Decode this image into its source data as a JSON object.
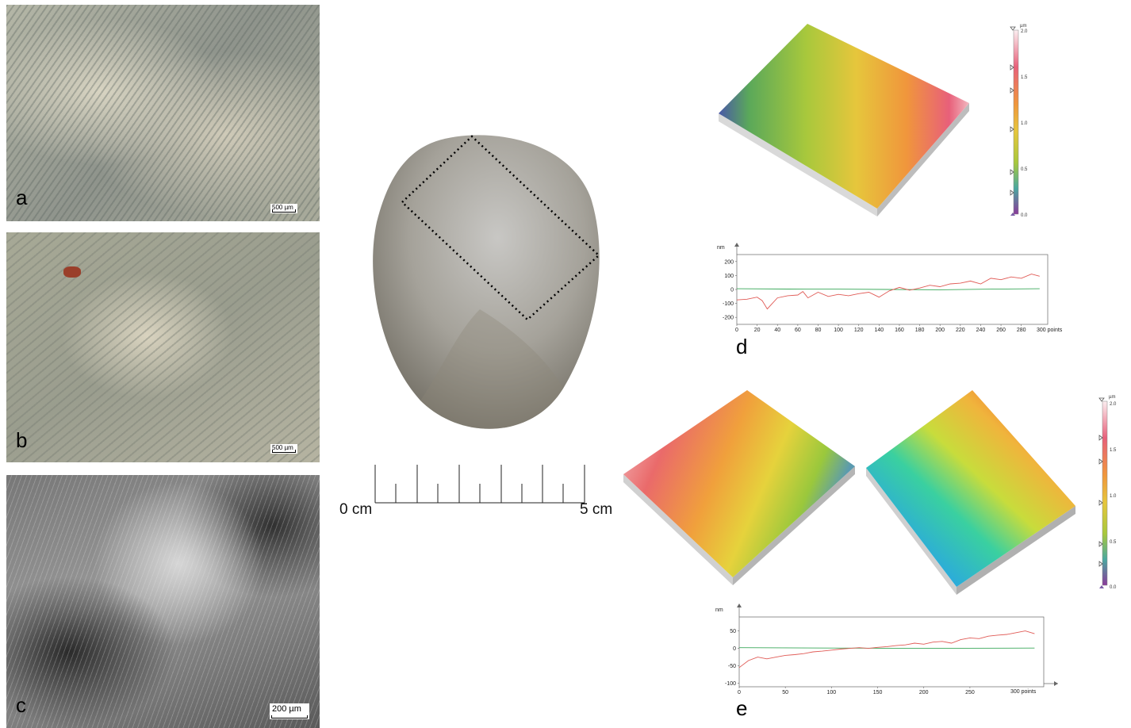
{
  "panels": {
    "a": {
      "letter": "a",
      "scale_label": "500 µm"
    },
    "b": {
      "letter": "b",
      "scale_label": "500 µm"
    },
    "c": {
      "letter": "c",
      "scale_label": "200 µm"
    },
    "d": {
      "letter": "d"
    },
    "e": {
      "letter": "e"
    }
  },
  "ruler": {
    "start_label": "0 cm",
    "end_label": "5 cm"
  },
  "colors": {
    "profile_red": "#e05a55",
    "profile_green": "#3aa85a",
    "accent_marker": "#7b5ea7"
  },
  "colorbar": {
    "unit": "µm",
    "ticks": [
      "2.0",
      "1.5",
      "1.0",
      "0.5",
      "0.0"
    ]
  },
  "profile_d": {
    "unit": "nm",
    "y_ticks": [
      "200",
      "100",
      "0",
      "-100",
      "-200"
    ],
    "x_ticks": [
      "0",
      "20",
      "40",
      "60",
      "80",
      "100",
      "120",
      "140",
      "160",
      "180",
      "200",
      "220",
      "240",
      "260",
      "280"
    ],
    "x_end_label": "300 points",
    "red": [
      [
        0,
        -75
      ],
      [
        10,
        -70
      ],
      [
        20,
        -55
      ],
      [
        25,
        -80
      ],
      [
        30,
        -140
      ],
      [
        35,
        -100
      ],
      [
        40,
        -60
      ],
      [
        50,
        -45
      ],
      [
        60,
        -40
      ],
      [
        65,
        -15
      ],
      [
        70,
        -60
      ],
      [
        80,
        -20
      ],
      [
        90,
        -50
      ],
      [
        100,
        -35
      ],
      [
        110,
        -45
      ],
      [
        120,
        -30
      ],
      [
        130,
        -20
      ],
      [
        140,
        -55
      ],
      [
        150,
        -10
      ],
      [
        160,
        15
      ],
      [
        170,
        -5
      ],
      [
        180,
        10
      ],
      [
        190,
        30
      ],
      [
        200,
        20
      ],
      [
        210,
        40
      ],
      [
        220,
        45
      ],
      [
        230,
        60
      ],
      [
        240,
        40
      ],
      [
        250,
        80
      ],
      [
        260,
        70
      ],
      [
        270,
        90
      ],
      [
        280,
        80
      ],
      [
        290,
        110
      ],
      [
        298,
        95
      ]
    ],
    "green": [
      [
        0,
        5
      ],
      [
        50,
        3
      ],
      [
        100,
        2
      ],
      [
        150,
        0
      ],
      [
        200,
        -2
      ],
      [
        250,
        2
      ],
      [
        298,
        5
      ]
    ]
  },
  "profile_e": {
    "unit": "nm",
    "y_ticks": [
      "50",
      "0",
      "-50",
      "-100"
    ],
    "x_ticks": [
      "0",
      "50",
      "100",
      "150",
      "200",
      "250"
    ],
    "x_end_label": "300 points",
    "red": [
      [
        0,
        -55
      ],
      [
        10,
        -35
      ],
      [
        20,
        -25
      ],
      [
        30,
        -30
      ],
      [
        40,
        -25
      ],
      [
        50,
        -20
      ],
      [
        60,
        -18
      ],
      [
        70,
        -15
      ],
      [
        80,
        -10
      ],
      [
        90,
        -8
      ],
      [
        100,
        -5
      ],
      [
        110,
        -2
      ],
      [
        120,
        0
      ],
      [
        130,
        2
      ],
      [
        140,
        0
      ],
      [
        150,
        3
      ],
      [
        160,
        5
      ],
      [
        170,
        8
      ],
      [
        180,
        10
      ],
      [
        190,
        15
      ],
      [
        200,
        12
      ],
      [
        210,
        18
      ],
      [
        220,
        20
      ],
      [
        230,
        15
      ],
      [
        240,
        25
      ],
      [
        250,
        30
      ],
      [
        260,
        28
      ],
      [
        270,
        35
      ],
      [
        280,
        38
      ],
      [
        290,
        40
      ],
      [
        300,
        45
      ],
      [
        310,
        50
      ],
      [
        320,
        42
      ]
    ],
    "green": [
      [
        0,
        2
      ],
      [
        100,
        1
      ],
      [
        200,
        0
      ],
      [
        320,
        1
      ]
    ]
  }
}
